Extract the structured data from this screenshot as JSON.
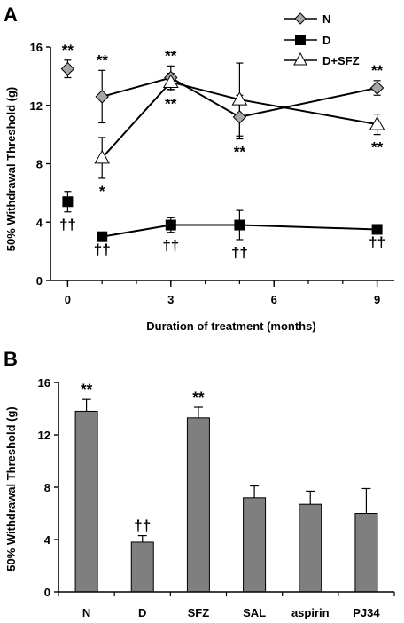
{
  "panels": {
    "a_letter": "A",
    "b_letter": "B"
  },
  "colors": {
    "bar": "#7f7f7f",
    "marker_n": "#a6a6a6",
    "marker_d": "#000000",
    "marker_sfz": "#ffffff",
    "line": "#000000"
  },
  "chart_data": [
    {
      "type": "line",
      "xlabel": "Duration of treatment (months)",
      "ylabel": "50% Withdrawal Threshold (g)",
      "xlim": [
        -0.5,
        9.5
      ],
      "ylim": [
        0,
        16
      ],
      "xticks": [
        0,
        3,
        6,
        9
      ],
      "yticks": [
        0,
        4,
        8,
        12,
        16
      ],
      "grid": false,
      "legend_position": "top-right",
      "series": [
        {
          "name": "N",
          "marker": "diamond",
          "x": [
            0,
            1,
            3,
            5,
            9
          ],
          "y": [
            14.5,
            12.6,
            13.9,
            11.2,
            13.2
          ],
          "err": [
            0.6,
            1.8,
            0.8,
            1.5,
            0.5
          ],
          "annotations": [
            {
              "x": 0,
              "text": "**",
              "pos": "above"
            },
            {
              "x": 1,
              "text": "**",
              "pos": "above"
            },
            {
              "x": 3,
              "text": "**",
              "pos": "above"
            },
            {
              "x": 5,
              "text": "**",
              "pos": "below"
            },
            {
              "x": 9,
              "text": "**",
              "pos": "above"
            }
          ]
        },
        {
          "name": "D",
          "marker": "square",
          "x": [
            0,
            1,
            3,
            5,
            9
          ],
          "y": [
            5.4,
            3.0,
            3.8,
            3.8,
            3.5
          ],
          "err": [
            0.7,
            0.0,
            0.5,
            1.0,
            0.0
          ],
          "annotations": [
            {
              "x": 0,
              "text": "††",
              "pos": "below"
            },
            {
              "x": 1,
              "text": "††",
              "pos": "below"
            },
            {
              "x": 3,
              "text": "††",
              "pos": "below"
            },
            {
              "x": 5,
              "text": "††",
              "pos": "below"
            },
            {
              "x": 9,
              "text": "††",
              "pos": "below"
            }
          ]
        },
        {
          "name": "D+SFZ",
          "marker": "triangle",
          "x": [
            1,
            3,
            5,
            9
          ],
          "y": [
            8.4,
            13.6,
            12.4,
            10.7
          ],
          "err": [
            1.4,
            0.6,
            2.5,
            0.7
          ],
          "annotations": [
            {
              "x": 1,
              "text": "*",
              "pos": "below"
            },
            {
              "x": 3,
              "text": "**",
              "pos": "below"
            },
            {
              "x": 9,
              "text": "**",
              "pos": "below"
            }
          ]
        }
      ]
    },
    {
      "type": "bar",
      "ylabel": "50% Withdrawal Threshold (g)",
      "xlabel": "",
      "ylim": [
        0,
        16
      ],
      "yticks": [
        0,
        4,
        8,
        12,
        16
      ],
      "grid": false,
      "categories": [
        "N",
        "D",
        "SFZ",
        "SAL",
        "aspirin",
        "PJ34"
      ],
      "values": [
        13.8,
        3.8,
        13.3,
        7.2,
        6.7,
        6.0
      ],
      "err": [
        0.9,
        0.5,
        0.8,
        0.9,
        1.0,
        1.9
      ],
      "annotations": [
        "**",
        "††",
        "**",
        "",
        "",
        ""
      ]
    }
  ]
}
